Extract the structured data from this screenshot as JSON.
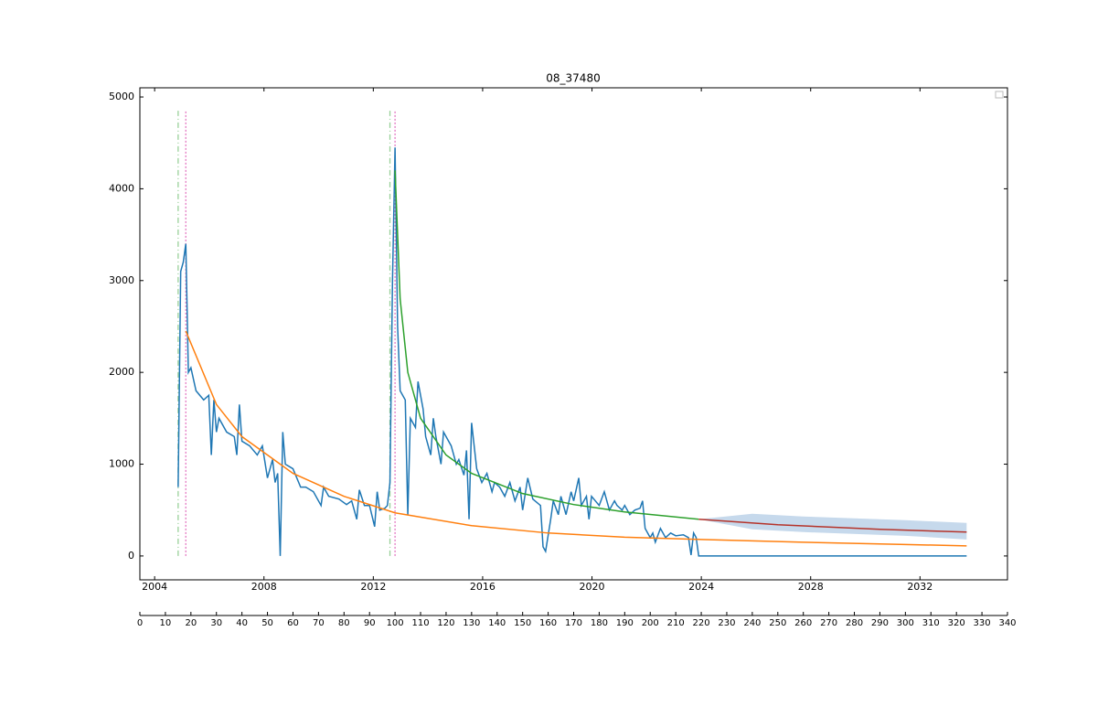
{
  "chart_data": {
    "type": "line",
    "title": "08_37480",
    "xlim": [
      0,
      340
    ],
    "xticks": [
      0,
      10,
      20,
      30,
      40,
      50,
      60,
      70,
      80,
      90,
      100,
      110,
      120,
      130,
      140,
      150,
      160,
      170,
      180,
      190,
      200,
      210,
      220,
      230,
      240,
      250,
      260,
      270,
      280,
      290,
      300,
      310,
      320,
      330,
      340
    ],
    "date_xlim": [
      2003.46,
      2035.2
    ],
    "date_xticks": [
      2004,
      2008,
      2012,
      2016,
      2020,
      2024,
      2028,
      2032
    ],
    "ylim": [
      -260,
      5100
    ],
    "yticks": [
      0,
      1000,
      2000,
      3000,
      4000,
      5000
    ],
    "series": [
      {
        "color": "#1f77b4",
        "x": [
          15,
          16,
          17,
          18,
          19,
          20,
          22,
          25,
          27,
          28,
          29,
          30,
          31,
          34,
          37,
          38,
          39,
          40,
          43,
          46,
          48,
          50,
          52,
          53,
          54,
          55,
          56,
          57,
          60,
          63,
          65,
          68,
          71,
          72,
          74,
          78,
          81,
          83,
          85,
          86,
          88,
          90,
          92,
          93,
          94,
          96,
          97,
          98,
          99,
          100,
          101,
          102,
          104,
          105,
          106,
          108,
          109,
          111,
          112,
          114,
          115,
          116,
          118,
          119,
          122,
          124,
          125,
          127,
          128,
          129,
          130,
          132,
          134,
          136,
          138,
          139,
          141,
          143,
          145,
          147,
          149,
          150,
          152,
          154,
          157,
          158,
          159,
          161,
          162,
          164,
          165,
          167,
          169,
          170,
          172,
          173,
          175,
          176,
          177,
          180,
          182,
          184,
          186,
          187,
          189,
          190,
          192,
          194,
          196,
          197,
          198,
          200,
          201,
          202,
          204,
          206,
          208,
          210,
          213,
          215,
          216,
          217,
          218,
          219,
          324
        ],
        "values": [
          750,
          3100,
          3200,
          3400,
          2000,
          2050,
          1800,
          1700,
          1750,
          1100,
          1700,
          1350,
          1500,
          1350,
          1300,
          1100,
          1650,
          1250,
          1200,
          1100,
          1200,
          850,
          1050,
          800,
          900,
          0,
          1350,
          1000,
          950,
          750,
          750,
          700,
          550,
          750,
          650,
          620,
          560,
          600,
          400,
          720,
          550,
          550,
          320,
          700,
          500,
          520,
          550,
          800,
          3000,
          4450,
          2500,
          1800,
          1700,
          450,
          1500,
          1400,
          1900,
          1600,
          1300,
          1100,
          1500,
          1300,
          1000,
          1350,
          1200,
          1000,
          1050,
          880,
          1150,
          400,
          1450,
          950,
          800,
          900,
          700,
          800,
          750,
          650,
          800,
          600,
          750,
          500,
          850,
          620,
          550,
          100,
          50,
          400,
          600,
          450,
          650,
          450,
          700,
          600,
          850,
          550,
          650,
          400,
          650,
          550,
          700,
          500,
          600,
          550,
          500,
          550,
          450,
          500,
          520,
          600,
          300,
          200,
          250,
          150,
          300,
          200,
          250,
          220,
          230,
          200,
          10,
          250,
          200,
          0,
          0
        ]
      },
      {
        "color": "#ff7f0e",
        "x": [
          18,
          30,
          40,
          60,
          80,
          100,
          130,
          160,
          190,
          220,
          260,
          300,
          324
        ],
        "values": [
          2450,
          1650,
          1300,
          900,
          650,
          470,
          330,
          250,
          205,
          180,
          150,
          125,
          110
        ]
      },
      {
        "color": "#2ca02c",
        "x": [
          100,
          102,
          105,
          110,
          120,
          130,
          150,
          170,
          190,
          219
        ],
        "values": [
          4200,
          2800,
          2000,
          1500,
          1100,
          900,
          680,
          560,
          480,
          400
        ]
      },
      {
        "color": "#b5332a",
        "x": [
          219,
          250,
          290,
          324
        ],
        "values": [
          400,
          340,
          290,
          260
        ]
      }
    ],
    "band": {
      "color": "#c6d9ec",
      "x": [
        219,
        240,
        260,
        300,
        324
      ],
      "upper": [
        400,
        460,
        430,
        390,
        360
      ],
      "lower": [
        400,
        290,
        260,
        220,
        180
      ]
    },
    "vlines": [
      {
        "x": 15,
        "color": "#98d098",
        "style": "6,3,1,3",
        "ylim": [
          0,
          4850
        ]
      },
      {
        "x": 18,
        "color": "#e377c2",
        "style": "2,2",
        "ylim": [
          0,
          4850
        ]
      },
      {
        "x": 98,
        "color": "#98d098",
        "style": "6,3,1,3",
        "ylim": [
          0,
          4850
        ]
      },
      {
        "x": 100,
        "color": "#e377c2",
        "style": "2,2",
        "ylim": [
          0,
          4850
        ]
      }
    ]
  }
}
